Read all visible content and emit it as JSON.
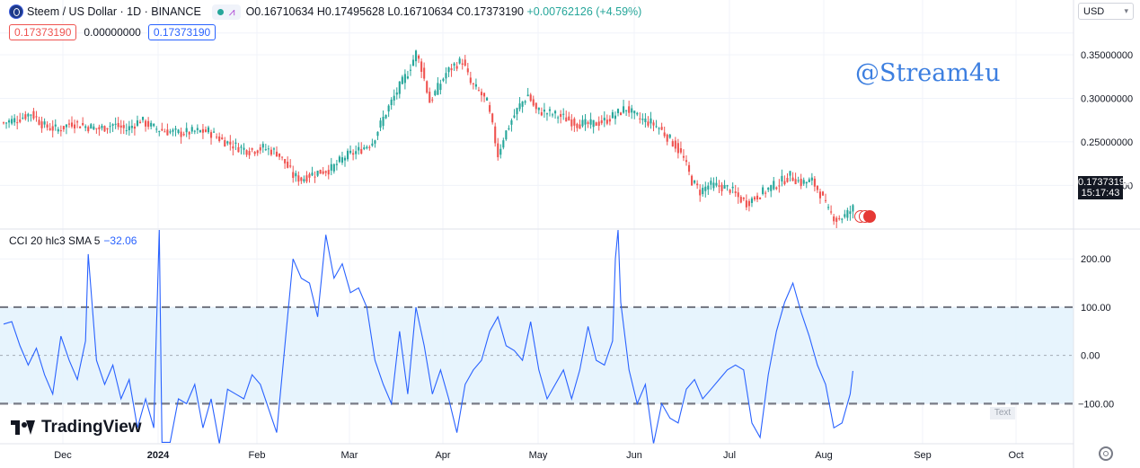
{
  "header": {
    "symbol": "Steem / US Dollar · 1D · BINANCE",
    "open": "O0.16710634",
    "high": "H0.17495628",
    "low": "L0.16710634",
    "close": "C0.17373190",
    "change": "+0.00762126 (+4.59%)",
    "bid": "0.17373190",
    "spread": "0.00000000",
    "ask": "0.17373190",
    "currency": "USD"
  },
  "watermark": "@Stream4u",
  "indicator": {
    "label": "CCI 20 hlc3 SMA 5",
    "value": "−32.06"
  },
  "last_price": {
    "value": "0.17373190",
    "countdown": "15:17:43"
  },
  "brand": "TradingView",
  "text_button": "Text",
  "colors": {
    "up": "#26a69a",
    "down": "#ef5350",
    "cci": "#2962ff",
    "band": "#e3f2fd"
  },
  "icons": [
    "steem-logo-icon",
    "chevron-down-icon",
    "tradingview-logo-icon",
    "gear-icon",
    "us-flag-icon"
  ],
  "chart_data": [
    {
      "type": "candlestick",
      "title": "Steem / US Dollar · 1D · BINANCE",
      "x_ticks": [
        "Dec",
        "2024",
        "Feb",
        "Mar",
        "Apr",
        "May",
        "Jun",
        "Jul",
        "Aug",
        "Sep",
        "Oct"
      ],
      "y_ticks": [
        "0.35000000",
        "0.30000000",
        "0.25000000",
        "0.20000000"
      ],
      "ylim": [
        0.155,
        0.382
      ],
      "series": [
        {
          "name": "Steem / US Dollar",
          "close_path": [
            [
              0,
              0.272
            ],
            [
              5,
              0.276
            ],
            [
              10,
              0.283
            ],
            [
              15,
              0.268
            ],
            [
              20,
              0.264
            ],
            [
              25,
              0.272
            ],
            [
              30,
              0.268
            ],
            [
              35,
              0.265
            ],
            [
              40,
              0.27
            ],
            [
              45,
              0.264
            ],
            [
              50,
              0.275
            ],
            [
              55,
              0.266
            ],
            [
              60,
              0.262
            ],
            [
              65,
              0.26
            ],
            [
              70,
              0.262
            ],
            [
              75,
              0.262
            ],
            [
              80,
              0.252
            ],
            [
              85,
              0.245
            ],
            [
              90,
              0.24
            ],
            [
              95,
              0.243
            ],
            [
              100,
              0.238
            ],
            [
              103,
              0.226
            ],
            [
              106,
              0.211
            ],
            [
              109,
              0.207
            ],
            [
              112,
              0.212
            ],
            [
              115,
              0.215
            ],
            [
              120,
              0.219
            ],
            [
              125,
              0.233
            ],
            [
              130,
              0.24
            ],
            [
              135,
              0.25
            ],
            [
              140,
              0.284
            ],
            [
              144,
              0.308
            ],
            [
              148,
              0.33
            ],
            [
              151,
              0.352
            ],
            [
              153,
              0.335
            ],
            [
              156,
              0.296
            ],
            [
              159,
              0.312
            ],
            [
              162,
              0.329
            ],
            [
              165,
              0.338
            ],
            [
              168,
              0.343
            ],
            [
              171,
              0.317
            ],
            [
              174,
              0.308
            ],
            [
              177,
              0.295
            ],
            [
              179,
              0.267
            ],
            [
              181,
              0.235
            ],
            [
              183,
              0.255
            ],
            [
              186,
              0.275
            ],
            [
              189,
              0.292
            ],
            [
              192,
              0.304
            ],
            [
              195,
              0.286
            ],
            [
              200,
              0.283
            ],
            [
              205,
              0.278
            ],
            [
              210,
              0.271
            ],
            [
              215,
              0.27
            ],
            [
              220,
              0.274
            ],
            [
              225,
              0.283
            ],
            [
              228,
              0.289
            ],
            [
              231,
              0.28
            ],
            [
              234,
              0.275
            ],
            [
              237,
              0.272
            ],
            [
              240,
              0.266
            ],
            [
              243,
              0.256
            ],
            [
              246,
              0.246
            ],
            [
              249,
              0.23
            ],
            [
              252,
              0.205
            ],
            [
              255,
              0.193
            ],
            [
              258,
              0.2
            ],
            [
              262,
              0.199
            ],
            [
              266,
              0.196
            ],
            [
              269,
              0.186
            ],
            [
              272,
              0.18
            ],
            [
              276,
              0.188
            ],
            [
              280,
              0.196
            ],
            [
              284,
              0.203
            ],
            [
              288,
              0.211
            ],
            [
              292,
              0.203
            ],
            [
              296,
              0.205
            ],
            [
              299,
              0.191
            ],
            [
              302,
              0.17
            ],
            [
              305,
              0.161
            ],
            [
              308,
              0.165
            ],
            [
              311,
              0.1737
            ]
          ]
        }
      ]
    },
    {
      "type": "line",
      "title": "CCI 20 hlc3 SMA 5",
      "y_ticks": [
        "200.00",
        "100.00",
        "0.00",
        "−100.00"
      ],
      "ylim": [
        -183,
        260
      ],
      "band": [
        -100,
        100
      ],
      "series": [
        {
          "name": "CCI",
          "x": [
            0,
            3,
            6,
            9,
            12,
            15,
            18,
            21,
            24,
            27,
            30,
            31,
            34,
            37,
            40,
            43,
            46,
            49,
            52,
            55,
            56,
            57,
            58,
            61,
            64,
            67,
            70,
            73,
            76,
            79,
            82,
            85,
            88,
            91,
            94,
            97,
            100,
            103,
            106,
            109,
            112,
            115,
            118,
            121,
            124,
            127,
            130,
            133,
            136,
            139,
            142,
            145,
            148,
            151,
            154,
            157,
            160,
            163,
            166,
            169,
            172,
            175,
            178,
            181,
            184,
            187,
            190,
            193,
            196,
            199,
            202,
            205,
            208,
            211,
            214,
            217,
            220,
            223,
            224,
            225,
            226,
            229,
            232,
            235,
            238,
            241,
            244,
            247,
            250,
            253,
            256,
            259,
            262,
            265,
            268,
            271,
            274,
            277,
            280,
            283,
            286,
            289,
            292,
            295,
            298,
            301,
            304,
            307,
            310,
            311
          ],
          "values": [
            65,
            70,
            20,
            -20,
            15,
            -40,
            -80,
            40,
            -10,
            -50,
            30,
            210,
            -10,
            -60,
            -20,
            -90,
            -50,
            -150,
            -90,
            -150,
            60,
            260,
            -180,
            -180,
            -90,
            -100,
            -60,
            -150,
            -90,
            -190,
            -70,
            -80,
            -90,
            -40,
            -60,
            -110,
            -160,
            20,
            200,
            160,
            150,
            80,
            250,
            160,
            190,
            130,
            140,
            100,
            -10,
            -60,
            -100,
            50,
            -80,
            100,
            20,
            -80,
            -30,
            -90,
            -160,
            -60,
            -30,
            -10,
            50,
            80,
            20,
            10,
            -10,
            70,
            -30,
            -90,
            -60,
            -30,
            -90,
            -30,
            60,
            -10,
            -20,
            30,
            200,
            270,
            110,
            -30,
            -100,
            -60,
            -190,
            -100,
            -130,
            -140,
            -70,
            -50,
            -90,
            -70,
            -50,
            -30,
            -20,
            -30,
            -140,
            -170,
            -40,
            50,
            110,
            150,
            90,
            40,
            -20,
            -60,
            -150,
            -140,
            -80,
            -32
          ]
        }
      ]
    }
  ]
}
